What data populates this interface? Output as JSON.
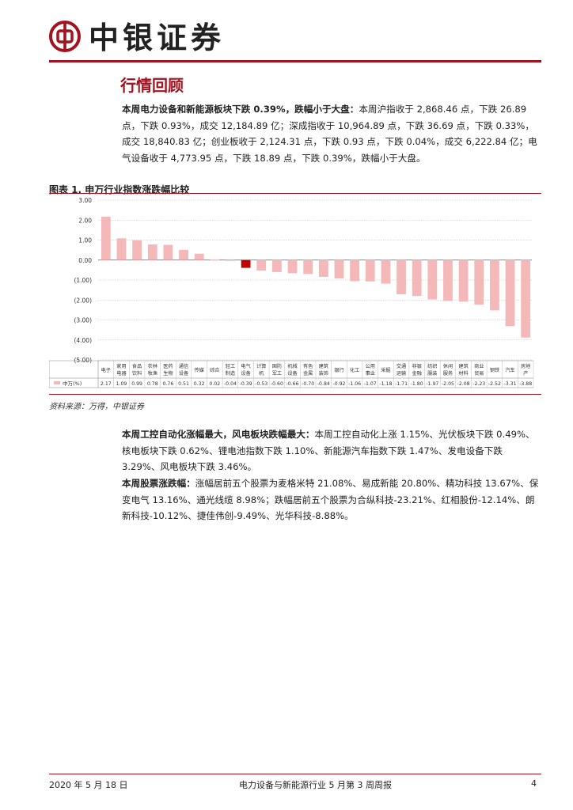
{
  "header": {
    "brand": "中银证券"
  },
  "section": {
    "title": "行情回顾"
  },
  "para1": {
    "lead": "本周电力设备和新能源板块下跌 0.39%，跌幅小于大盘：",
    "body": "本周沪指收于 2,868.46 点，下跌 26.89 点，下跌 0.93%，成交 12,184.89 亿；深成指收于 10,964.89 点，下跌 36.69 点，下跌 0.33%，成交 18,840.83 亿；创业板收于 2,124.31 点，下跌 0.93 点，下跌 0.04%，成交 6,222.84 亿；电气设备收于 4,773.95 点，下跌 18.89 点，下跌 0.39%，跌幅小于大盘。"
  },
  "figure": {
    "title": "图表 1. 申万行业指数涨跌幅比较",
    "source": "资料来源：万得，中银证券"
  },
  "chart_data": {
    "type": "bar",
    "legend_label": "中万(%)",
    "ylim": [
      -5,
      3
    ],
    "yticks": [
      "3.00",
      "2.00",
      "1.00",
      "0.00",
      "(1.00)",
      "(2.00)",
      "(3.00)",
      "(4.00)",
      "(5.00)"
    ],
    "highlight_color": "#c00000",
    "bar_color": "#f4b8b8",
    "categories": [
      [
        "电子"
      ],
      [
        "家用",
        "电器"
      ],
      [
        "食品",
        "饮料"
      ],
      [
        "农林",
        "牧渔"
      ],
      [
        "医药",
        "生物"
      ],
      [
        "通信",
        "设备"
      ],
      [
        "传媒"
      ],
      [
        "综合"
      ],
      [
        "轻工",
        "制造"
      ],
      [
        "电气",
        "设备"
      ],
      [
        "计算",
        "机"
      ],
      [
        "国防",
        "军工"
      ],
      [
        "机械",
        "设备"
      ],
      [
        "有色",
        "金属"
      ],
      [
        "建筑",
        "装饰"
      ],
      [
        "银行"
      ],
      [
        "化工"
      ],
      [
        "公用",
        "事业"
      ],
      [
        "采掘"
      ],
      [
        "交通",
        "运输"
      ],
      [
        "非银",
        "金融"
      ],
      [
        "纺织",
        "服装"
      ],
      [
        "休闲",
        "服务"
      ],
      [
        "建筑",
        "材料"
      ],
      [
        "商业",
        "贸易"
      ],
      [
        "钢铁"
      ],
      [
        "汽车"
      ],
      [
        "房地",
        "产"
      ]
    ],
    "values": [
      2.17,
      1.09,
      0.99,
      0.78,
      0.76,
      0.51,
      0.32,
      0.02,
      -0.04,
      -0.39,
      -0.53,
      -0.6,
      -0.66,
      -0.7,
      -0.84,
      -0.92,
      -1.06,
      -1.07,
      -1.18,
      -1.71,
      -1.8,
      -1.97,
      -2.05,
      -2.08,
      -2.23,
      -2.52,
      -3.31,
      -3.88
    ],
    "value_labels": [
      "2.17",
      "1.09",
      "0.99",
      "0.78",
      "0.76",
      "0.51",
      "0.32",
      "0.02",
      "-0.04",
      "-0.39",
      "-0.53",
      "-0.60",
      "-0.66",
      "-0.70",
      "-0.84",
      "-0.92",
      "-1.06",
      "-1.07",
      "-1.18",
      "-1.71",
      "-1.80",
      "-1.97",
      "-2.05",
      "-2.08",
      "-2.23",
      "-2.52",
      "-3.31",
      "-3.88"
    ],
    "highlight_index": 9
  },
  "para2": {
    "lead": "本周工控自动化涨幅最大，风电板块跌幅最大：",
    "body": "本周工控自动化上涨 1.15%、光伏板块下跌 0.49%、核电板块下跌 0.62%、锂电池指数下跌 1.10%、新能源汽车指数下跌 1.47%、发电设备下跌 3.29%、风电板块下跌 3.46%。"
  },
  "para3": {
    "lead": "本周股票涨跌幅：",
    "body": "涨幅居前五个股票为麦格米特 21.08%、易成新能 20.80%、精功科技 13.67%、保变电气 13.16%、通光线缆 8.98%；跌幅居前五个股票为合纵科技-23.21%、红相股份-12.14%、朗新科技-10.12%、捷佳伟创-9.49%、光华科技-8.88%。"
  },
  "footer": {
    "date": "2020 年 5 月 18 日",
    "report": "电力设备与新能源行业 5 月第 3 周周报",
    "page": "4"
  }
}
